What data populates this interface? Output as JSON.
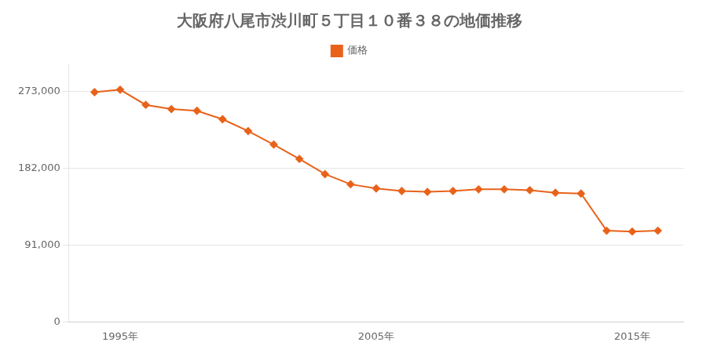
{
  "chart_data": {
    "type": "line",
    "title": "大阪府八尾市渋川町５丁目１０番３８の地価推移",
    "x": [
      1994,
      1995,
      1996,
      1997,
      1998,
      1999,
      2000,
      2001,
      2002,
      2003,
      2004,
      2005,
      2006,
      2007,
      2008,
      2009,
      2010,
      2011,
      2012,
      2013,
      2014,
      2015,
      2016
    ],
    "series": [
      {
        "name": "価格",
        "color": "#e8621a",
        "marker": "diamond",
        "values": [
          272000,
          275000,
          257000,
          252000,
          250000,
          240000,
          226000,
          210000,
          193000,
          175000,
          163000,
          158000,
          155000,
          154000,
          155000,
          157000,
          157000,
          156000,
          153000,
          152000,
          108000,
          107000,
          108000
        ]
      }
    ],
    "xlim": [
      1993,
      2017
    ],
    "xticks": [
      {
        "value": 1995,
        "label": "1995年"
      },
      {
        "value": 2005,
        "label": "2005年"
      },
      {
        "value": 2015,
        "label": "2015年"
      }
    ],
    "ylim": [
      0,
      305000
    ],
    "yticks": [
      0,
      {
        "value": 91000,
        "label": "91,000"
      },
      {
        "value": 182000,
        "label": "182,000"
      },
      {
        "value": 273000,
        "label": "273,000"
      }
    ],
    "grid": "y",
    "legend": "top"
  }
}
